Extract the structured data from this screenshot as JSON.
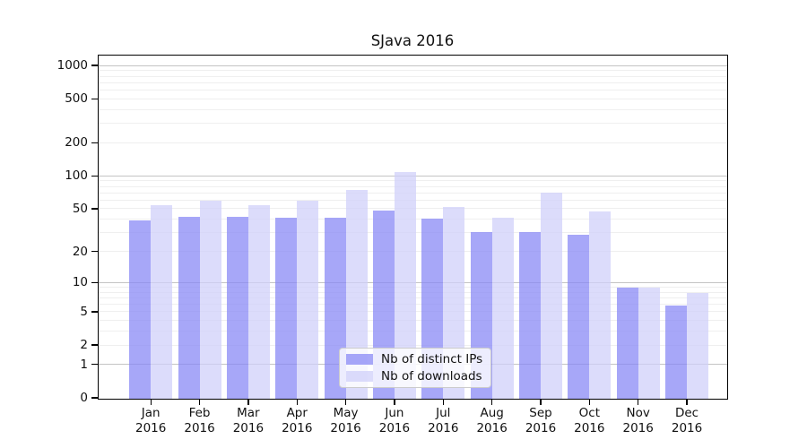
{
  "figure": {
    "title": "SJava 2016"
  },
  "chart_data": {
    "type": "bar",
    "title": "SJava 2016",
    "categories": [
      "Jan 2016",
      "Feb 2016",
      "Mar 2016",
      "Apr 2016",
      "May 2016",
      "Jun 2016",
      "Jul 2016",
      "Aug 2016",
      "Sep 2016",
      "Oct 2016",
      "Nov 2016",
      "Dec 2016"
    ],
    "category_line1": [
      "Jan",
      "Feb",
      "Mar",
      "Apr",
      "May",
      "Jun",
      "Jul",
      "Aug",
      "Sep",
      "Oct",
      "Nov",
      "Dec"
    ],
    "category_line2": "2016",
    "series": [
      {
        "name": "Nb of distinct IPs",
        "color": "#8585f5",
        "alpha": 0.72,
        "values": [
          40,
          43,
          43,
          42,
          42,
          49,
          41,
          31,
          31,
          29,
          9,
          6
        ]
      },
      {
        "name": "Nb of downloads",
        "color": "#cfcffa",
        "alpha": 0.72,
        "values": [
          55,
          61,
          55,
          60,
          76,
          110,
          53,
          42,
          71,
          48,
          9,
          8
        ]
      }
    ],
    "yscale": "log1p",
    "ylim": [
      0,
      1232
    ],
    "ytick_values": [
      1000,
      500,
      200,
      100,
      50,
      20,
      10,
      5,
      2,
      1,
      0
    ],
    "ytick_labels": [
      "1000",
      "500",
      "200",
      "100",
      "50",
      "20",
      "10",
      "5",
      "2",
      "1",
      "0"
    ],
    "grid": {
      "horizontal_major": true,
      "horizontal_minor": true,
      "vertical": false
    },
    "legend": {
      "position": "lower center"
    }
  }
}
